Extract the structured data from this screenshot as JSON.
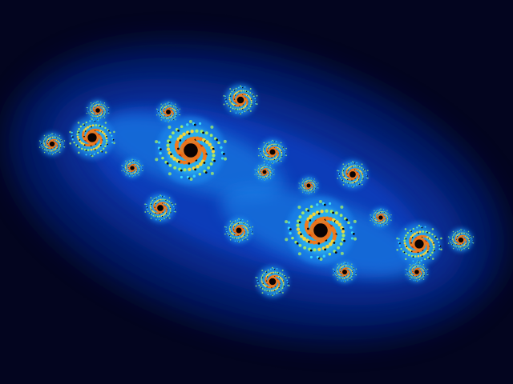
{
  "palette": {
    "background": "#03051f",
    "outer_glow": "#061a6e",
    "mid_glow": "#0a3fc2",
    "inner_glow": "#1a8cf0",
    "cyan": "#39d3f5",
    "green": "#9ee86a",
    "yellow": "#f2d43a",
    "orange": "#f07a1c",
    "red": "#c0250f",
    "core": "#0a0303"
  }
}
